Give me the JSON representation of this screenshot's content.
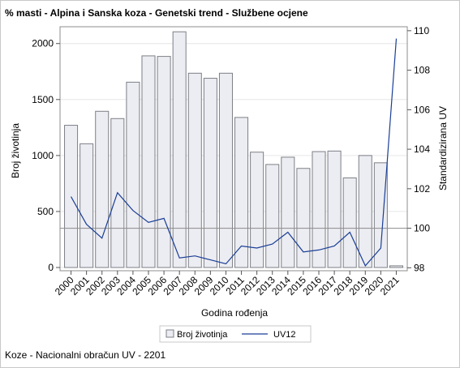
{
  "title": "% masti - Alpina i Sanska koza - Genetski trend - Službene ocjene",
  "footer": "Koze - Nacionalni obračun UV - 2201",
  "chart_data": {
    "type": "bar+line",
    "categories": [
      "2000",
      "2001",
      "2002",
      "2003",
      "2004",
      "2005",
      "2006",
      "2007",
      "2008",
      "2009",
      "2010",
      "2011",
      "2012",
      "2013",
      "2014",
      "2015",
      "2016",
      "2017",
      "2018",
      "2019",
      "2020",
      "2021"
    ],
    "series": [
      {
        "name": "Broj životinja",
        "type": "bar",
        "axis": "left",
        "values": [
          1270,
          1105,
          1395,
          1330,
          1655,
          1890,
          1885,
          2105,
          1735,
          1690,
          1735,
          1340,
          1030,
          920,
          985,
          885,
          1035,
          1040,
          800,
          1000,
          935,
          15
        ]
      },
      {
        "name": "UV12",
        "type": "line",
        "axis": "right",
        "values": [
          101.6,
          100.2,
          99.5,
          101.8,
          100.9,
          100.3,
          100.5,
          98.5,
          98.6,
          98.4,
          98.2,
          99.1,
          99.0,
          99.2,
          99.8,
          98.8,
          98.9,
          99.1,
          99.8,
          98.1,
          99.0,
          109.6
        ]
      }
    ],
    "xlabel": "Godina rođenja",
    "ylabel": "Broj životinja",
    "y2label": "Standardizirana UV",
    "ylim": [
      0,
      2150
    ],
    "y2lim": [
      97.85,
      110.2
    ],
    "yticks": [
      0,
      500,
      1000,
      1500,
      2000
    ],
    "y2ticks": [
      98,
      100,
      102,
      104,
      106,
      108,
      110
    ],
    "reference_line_y2": 100,
    "grid": true,
    "legend_position": "bottom",
    "colors": {
      "bar_fill": "#ecedf2",
      "bar_stroke": "#7d7f87",
      "line": "#1a3e96",
      "grid": "#e6e6e6",
      "ref_line": "#8c8c8c"
    }
  }
}
